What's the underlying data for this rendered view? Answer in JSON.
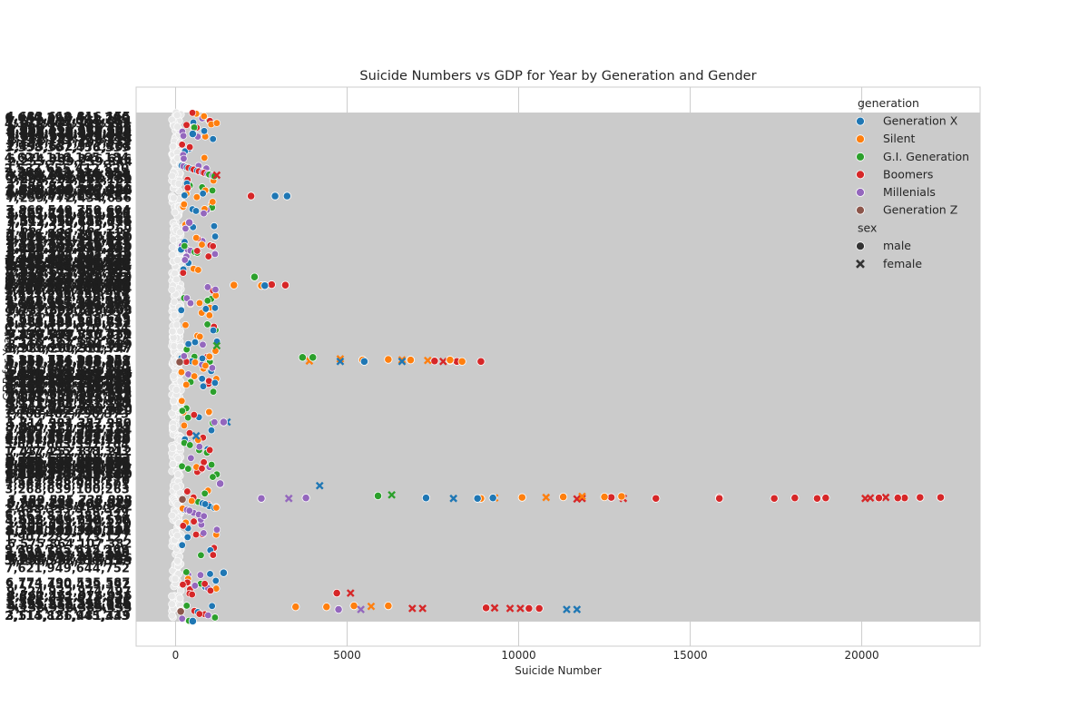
{
  "chart_data": {
    "type": "scatter",
    "title": "Suicide Numbers vs GDP for Year by Generation and Gender",
    "xlabel": "Suicide Number",
    "ylabel": "GDP for Year",
    "xlim": [
      -1150,
      23450
    ],
    "xticks": [
      0,
      5000,
      10000,
      15000,
      20000
    ],
    "xtick_labels": [
      "0",
      "5000",
      "10000",
      "15000",
      "20000"
    ],
    "grid": true,
    "y_axis_note": "categorical GDP-for-year values; tick labels overlap and are unreadable",
    "legend": {
      "placement": "top-right",
      "hue_title": "generation",
      "hue": [
        {
          "name": "Generation X",
          "color": "#1f77b4"
        },
        {
          "name": "Silent",
          "color": "#ff7f0e"
        },
        {
          "name": "G.I. Generation",
          "color": "#2ca02c"
        },
        {
          "name": "Boomers",
          "color": "#d62728"
        },
        {
          "name": "Millenials",
          "color": "#9467bd"
        },
        {
          "name": "Generation Z",
          "color": "#8c564b"
        }
      ],
      "style_title": "sex",
      "styles": [
        {
          "name": "male",
          "marker": "circle"
        },
        {
          "name": "female",
          "marker": "x"
        }
      ]
    },
    "series": [
      {
        "name": "Boomers",
        "color": "#d62728",
        "points": [
          [
            22300,
            0.756
          ],
          [
            21700,
            0.756
          ],
          [
            21250,
            0.757
          ],
          [
            21050,
            0.757
          ],
          [
            20700,
            0.756
          ],
          [
            20500,
            0.757
          ],
          [
            20250,
            0.757
          ],
          [
            20100,
            0.758
          ],
          [
            18950,
            0.757
          ],
          [
            18700,
            0.758
          ],
          [
            18050,
            0.757
          ],
          [
            17450,
            0.758
          ],
          [
            15850,
            0.756
          ],
          [
            15850,
            0.758
          ],
          [
            14000,
            0.758
          ],
          [
            13050,
            0.758
          ],
          [
            12700,
            0.756
          ],
          [
            11850,
            0.758
          ],
          [
            11700,
            0.759
          ],
          [
            10600,
            0.974
          ],
          [
            10300,
            0.974
          ],
          [
            10050,
            0.974
          ],
          [
            9750,
            0.974
          ],
          [
            9300,
            0.973
          ],
          [
            9050,
            0.973
          ],
          [
            8900,
            0.489
          ],
          [
            8200,
            0.489
          ],
          [
            8000,
            0.487
          ],
          [
            7800,
            0.489
          ],
          [
            7550,
            0.488
          ],
          [
            7200,
            0.974
          ],
          [
            6900,
            0.974
          ],
          [
            5100,
            0.944
          ],
          [
            4700,
            0.944
          ],
          [
            3200,
            0.339
          ],
          [
            2800,
            0.338
          ],
          [
            2200,
            0.164
          ],
          [
            1200,
            0.123
          ]
        ]
      },
      {
        "name": "Silent",
        "color": "#ff7f0e",
        "points": [
          [
            13000,
            0.754
          ],
          [
            12500,
            0.755
          ],
          [
            11850,
            0.754
          ],
          [
            11300,
            0.755
          ],
          [
            10800,
            0.756
          ],
          [
            10100,
            0.756
          ],
          [
            9300,
            0.757
          ],
          [
            8900,
            0.758
          ],
          [
            8350,
            0.489
          ],
          [
            8000,
            0.486
          ],
          [
            7350,
            0.487
          ],
          [
            6850,
            0.486
          ],
          [
            6600,
            0.486
          ],
          [
            6200,
            0.485
          ],
          [
            5450,
            0.486
          ],
          [
            4800,
            0.484
          ],
          [
            3900,
            0.488
          ],
          [
            6200,
            0.969
          ],
          [
            5700,
            0.97
          ],
          [
            5200,
            0.969
          ],
          [
            4400,
            0.971
          ],
          [
            3500,
            0.971
          ],
          [
            2500,
            0.34
          ],
          [
            1700,
            0.339
          ]
        ]
      },
      {
        "name": "Generation X",
        "color": "#1f77b4",
        "points": [
          [
            11700,
            0.976
          ],
          [
            11400,
            0.976
          ],
          [
            9250,
            0.757
          ],
          [
            8800,
            0.758
          ],
          [
            8100,
            0.758
          ],
          [
            7300,
            0.757
          ],
          [
            6600,
            0.489
          ],
          [
            5500,
            0.489
          ],
          [
            4800,
            0.489
          ],
          [
            4200,
            0.733
          ],
          [
            3250,
            0.164
          ],
          [
            2900,
            0.164
          ],
          [
            2600,
            0.34
          ],
          [
            1500,
            0.608
          ],
          [
            600,
            0.635
          ],
          [
            500,
            0.042
          ],
          [
            500,
            0.999
          ],
          [
            1400,
            0.904
          ]
        ]
      },
      {
        "name": "G.I. Generation",
        "color": "#2ca02c",
        "points": [
          [
            6300,
            0.751
          ],
          [
            5900,
            0.753
          ],
          [
            4000,
            0.481
          ],
          [
            3700,
            0.481
          ],
          [
            2300,
            0.323
          ],
          [
            1200,
            0.458
          ]
        ]
      },
      {
        "name": "Millenials",
        "color": "#9467bd",
        "points": [
          [
            5400,
            0.976
          ],
          [
            4750,
            0.976
          ],
          [
            3800,
            0.757
          ],
          [
            3300,
            0.758
          ],
          [
            2500,
            0.758
          ],
          [
            1400,
            0.608
          ],
          [
            1300,
            0.729
          ],
          [
            400,
            0.216
          ]
        ]
      },
      {
        "name": "Generation Z",
        "color": "#8c564b",
        "points": [
          [
            150,
            0.98
          ],
          [
            200,
            0.76
          ],
          [
            120,
            0.49
          ]
        ]
      }
    ]
  }
}
